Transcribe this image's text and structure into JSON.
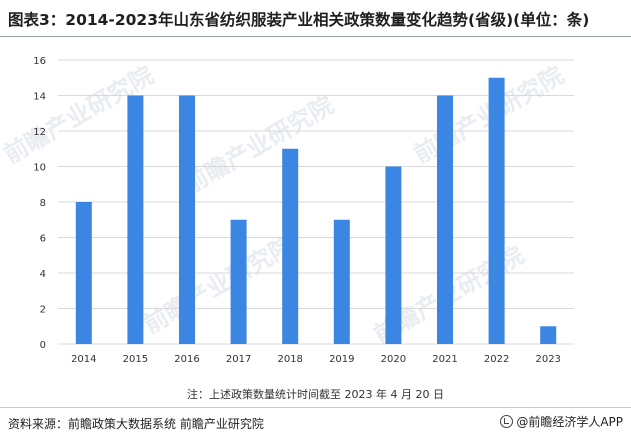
{
  "header": {
    "title": "图表3：2014-2023年山东省纺织服装产业相关政策数量变化趋势(省级)(单位：条)"
  },
  "chart_data": {
    "type": "bar",
    "categories": [
      "2014",
      "2015",
      "2016",
      "2017",
      "2018",
      "2019",
      "2020",
      "2021",
      "2022",
      "2023"
    ],
    "values": [
      8,
      14,
      14,
      7,
      11,
      7,
      10,
      14,
      15,
      1
    ],
    "ylim": [
      0,
      16
    ],
    "yticks": [
      0,
      2,
      4,
      6,
      8,
      10,
      12,
      14,
      16
    ],
    "grid": true,
    "bar_color": "#3b86e3"
  },
  "footer": {
    "note": "注：上述政策数量统计时间截至 2023 年 4 月 20 日",
    "source": "资料来源：前瞻政策大数据系统 前瞻产业研究院",
    "brand": "@前瞻经济学人APP",
    "brand_icon": "brand-logo-icon"
  },
  "watermark": {
    "text": "前瞻产业研究院"
  }
}
